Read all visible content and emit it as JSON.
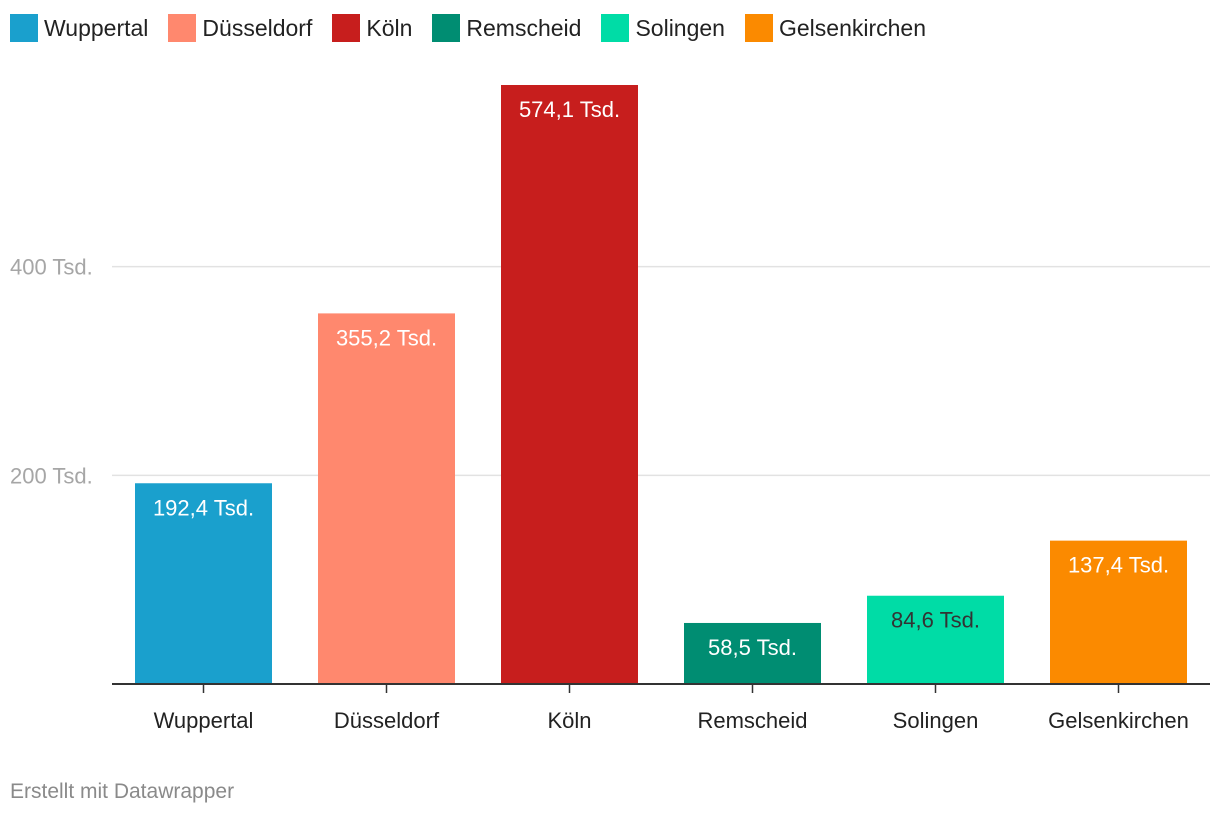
{
  "chart_data": {
    "type": "bar",
    "title": "",
    "xlabel": "",
    "ylabel": "",
    "categories": [
      "Wuppertal",
      "Düsseldorf",
      "Köln",
      "Remscheid",
      "Solingen",
      "Gelsenkirchen"
    ],
    "values": [
      192.4,
      355.2,
      574.1,
      58.5,
      84.6,
      137.4
    ],
    "value_labels": [
      "192,4 Tsd.",
      "355,2 Tsd.",
      "574,1 Tsd.",
      "58,5 Tsd.",
      "84,6 Tsd.",
      "137,4 Tsd."
    ],
    "colors": [
      "#1aa0cd",
      "#ff886e",
      "#c71e1d",
      "#008d72",
      "#00dca6",
      "#fb8a00"
    ],
    "label_colors": [
      "#ffffff",
      "#ffffff",
      "#ffffff",
      "#ffffff",
      "#333333",
      "#ffffff"
    ],
    "yticks": [
      200,
      400
    ],
    "ytick_labels": [
      "200 Tsd.",
      "400 Tsd."
    ],
    "ylim": [
      0,
      574.1
    ],
    "unit": "Tsd.",
    "legend": {
      "placement": "top-left",
      "entries": [
        "Wuppertal",
        "Düsseldorf",
        "Köln",
        "Remscheid",
        "Solingen",
        "Gelsenkirchen"
      ]
    },
    "grid": true
  },
  "footer": {
    "credit": "Erstellt mit Datawrapper"
  }
}
